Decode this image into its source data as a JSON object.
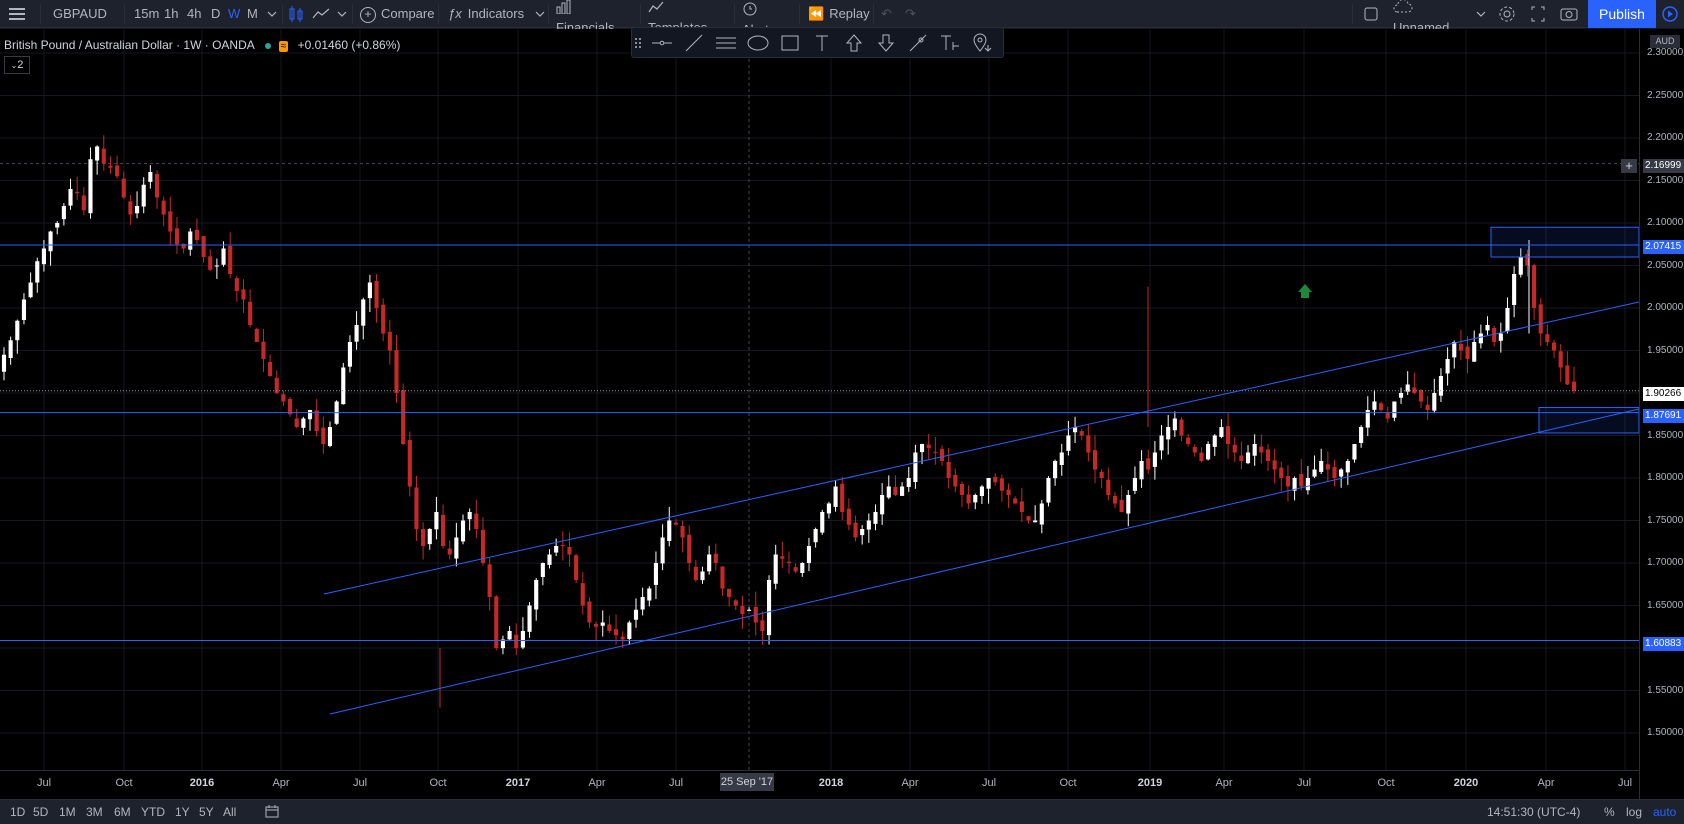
{
  "toolbar": {
    "symbol": "GBPAUD",
    "intervals": [
      "15m",
      "1h",
      "4h",
      "D",
      "W",
      "M"
    ],
    "active_interval": "W",
    "compare_label": "Compare",
    "indicators_label": "Indicators",
    "financials_label": "Financials",
    "templates_label": "Templates",
    "alert_label": "Alert",
    "replay_label": "Replay",
    "layout_name": "Unnamed",
    "publish_label": "Publish"
  },
  "legend": {
    "title": "British Pound / Australian Dollar · 1W · OANDA",
    "change": "+0.01460 (+0.86%)",
    "badge": "2"
  },
  "price_axis": {
    "currency": "AUD",
    "ticks": [
      "2.30000",
      "2.25000",
      "2.20000",
      "2.15000",
      "2.10000",
      "2.05000",
      "2.00000",
      "1.95000",
      "1.90000",
      "1.85000",
      "1.80000",
      "1.75000",
      "1.70000",
      "1.65000",
      "1.60000",
      "1.55000",
      "1.50000"
    ],
    "labels": {
      "crosshair": "2.16999",
      "level_top": "2.07415",
      "last_price": "1.90266",
      "level_mid": "1.87691",
      "level_low": "1.60883"
    }
  },
  "time_axis": {
    "ticks": [
      "Jul",
      "Oct",
      "2016",
      "Apr",
      "Jul",
      "Oct",
      "2017",
      "Apr",
      "Jul",
      "2018",
      "Apr",
      "Jul",
      "Oct",
      "2019",
      "Apr",
      "Jul",
      "Oct",
      "2020",
      "Apr",
      "Jul"
    ],
    "cursor_date": "25 Sep '17"
  },
  "bottom": {
    "ranges": [
      "1D",
      "5D",
      "1M",
      "3M",
      "6M",
      "YTD",
      "1Y",
      "5Y",
      "All"
    ],
    "clock": "14:51:30 (UTC-4)",
    "percent": "%",
    "log": "log",
    "auto": "auto"
  },
  "chart_data": {
    "type": "candlestick",
    "symbol": "GBPAUD",
    "interval": "1W",
    "y_range": [
      1.47,
      2.32
    ],
    "last_price": 1.90266,
    "horizontal_levels": [
      2.07415,
      1.87691,
      1.60883
    ],
    "zones": [
      {
        "from": 2.06,
        "to": 2.095
      },
      {
        "from": 1.853,
        "to": 1.883
      }
    ],
    "colors": {
      "up": "#ffffff",
      "down": "#c62828",
      "lines": "#2962ff"
    },
    "closes": [
      1.945,
      1.962,
      1.985,
      2.01,
      2.03,
      2.055,
      2.07,
      2.09,
      2.1,
      2.12,
      2.14,
      2.135,
      2.115,
      2.175,
      2.19,
      2.17,
      2.165,
      2.155,
      2.13,
      2.11,
      2.12,
      2.145,
      2.16,
      2.13,
      2.11,
      2.09,
      2.075,
      2.07,
      2.09,
      2.08,
      2.06,
      2.045,
      2.05,
      2.07,
      2.04,
      2.02,
      2.01,
      1.98,
      1.96,
      1.94,
      1.92,
      1.9,
      1.89,
      1.875,
      1.86,
      1.87,
      1.88,
      1.855,
      1.84,
      1.86,
      1.89,
      1.93,
      1.96,
      1.98,
      2.01,
      2.03,
      2.0,
      1.97,
      1.95,
      1.9,
      1.84,
      1.79,
      1.74,
      1.72,
      1.74,
      1.76,
      1.72,
      1.71,
      1.73,
      1.75,
      1.76,
      1.74,
      1.7,
      1.66,
      1.6,
      1.61,
      1.62,
      1.6,
      1.62,
      1.65,
      1.68,
      1.7,
      1.71,
      1.72,
      1.72,
      1.71,
      1.68,
      1.65,
      1.63,
      1.625,
      1.63,
      1.62,
      1.615,
      1.61,
      1.63,
      1.645,
      1.66,
      1.67,
      1.7,
      1.73,
      1.75,
      1.745,
      1.73,
      1.7,
      1.68,
      1.69,
      1.71,
      1.7,
      1.67,
      1.66,
      1.65,
      1.64,
      1.645,
      1.63,
      1.62,
      1.68,
      1.71,
      1.705,
      1.7,
      1.69,
      1.7,
      1.72,
      1.74,
      1.76,
      1.77,
      1.79,
      1.76,
      1.745,
      1.73,
      1.74,
      1.75,
      1.76,
      1.78,
      1.79,
      1.78,
      1.79,
      1.8,
      1.83,
      1.84,
      1.835,
      1.83,
      1.82,
      1.8,
      1.79,
      1.78,
      1.77,
      1.78,
      1.79,
      1.8,
      1.795,
      1.785,
      1.78,
      1.77,
      1.76,
      1.75,
      1.75,
      1.77,
      1.8,
      1.82,
      1.83,
      1.85,
      1.86,
      1.85,
      1.83,
      1.81,
      1.8,
      1.78,
      1.77,
      1.76,
      1.78,
      1.8,
      1.82,
      1.81,
      1.83,
      1.85,
      1.86,
      1.87,
      1.85,
      1.84,
      1.83,
      1.82,
      1.84,
      1.85,
      1.86,
      1.84,
      1.83,
      1.82,
      1.83,
      1.84,
      1.83,
      1.82,
      1.81,
      1.8,
      1.79,
      1.8,
      1.79,
      1.8,
      1.81,
      1.82,
      1.81,
      1.8,
      1.81,
      1.82,
      1.84,
      1.86,
      1.88,
      1.89,
      1.88,
      1.87,
      1.89,
      1.9,
      1.91,
      1.9,
      1.89,
      1.88,
      1.9,
      1.92,
      1.94,
      1.96,
      1.95,
      1.94,
      1.96,
      1.97,
      1.98,
      1.96,
      1.97,
      2.0,
      2.04,
      2.06,
      2.05,
      2.0,
      1.97,
      1.96,
      1.95,
      1.93,
      1.91,
      1.90266
    ]
  }
}
